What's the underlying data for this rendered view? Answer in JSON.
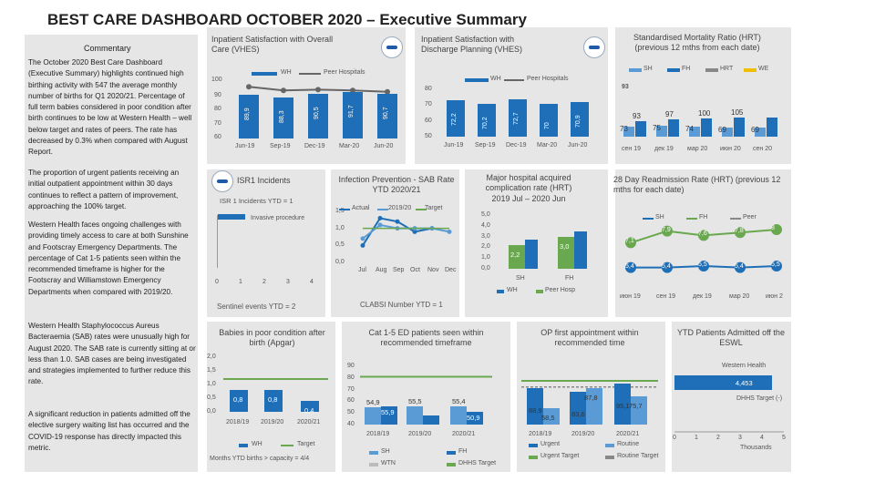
{
  "page": {
    "title": "BEST CARE DASHBOARD OCTOBER 2020 – Executive Summary"
  },
  "commentary": {
    "heading": "Commentary",
    "p1": "The October 2020 Best Care Dashboard (Executive Summary) highlights continued high birthing activity with 547 the average monthly number of births for Q1 2020/21. Percentage of full term babies considered in poor condition after birth continues to be low at Western Health – well below target and rates of peers. The rate has decreased by 0.3% when compared with August Report.",
    "p2": "The proportion of urgent patients receiving an initial outpatient appointment within 30 days continues to reflect a pattern of improvement, approaching the 100% target.",
    "p3": "Western Health faces ongoing challenges with providing timely access to care at both Sunshine and Footscray Emergency Departments. The percentage of Cat 1-5 patients seen within the recommended timeframe is higher for the Footscray and Williamstown Emergency Departments when compared with 2019/20.",
    "p4": "Western Health Staphylococcus Aureus Bacteraemia (SAB) rates were unusually high for August 2020. The SAB rate is currently sitting at or less than 1.0. SAB cases are being investigated and strategies implemented to further reduce this rate.",
    "p5": "A significant reduction in patients admitted off the elective surgery waiting list has occurred and the COVID-19 response has directly impacted this metric."
  },
  "vhes_overall": {
    "title": "Inpatient Satisfaction with Overall Care (VHES)",
    "legend_wh": "WH",
    "legend_peer": "Peer Hospitals",
    "yticks": [
      "100",
      "90",
      "80",
      "70",
      "60"
    ],
    "chart_data": {
      "type": "bar",
      "categories": [
        "Jun-19",
        "Sep-19",
        "Dec-19",
        "Mar-20",
        "Jun-20"
      ],
      "series": [
        {
          "name": "WH",
          "values": [
            89.9,
            88.3,
            90.5,
            91.7,
            90.7
          ],
          "labels": [
            "89,9",
            "88,3",
            "90,5",
            "91,7",
            "90,7"
          ]
        },
        {
          "name": "Peer Hospitals",
          "values": [
            95.5,
            93.0,
            93.5,
            93.0,
            92.0
          ]
        }
      ],
      "ylim": [
        60,
        100
      ]
    }
  },
  "vhes_discharge": {
    "title": "Inpatient Satisfaction with Discharge Planning (VHES)",
    "legend_wh": "WH",
    "legend_peer": "Peer Hospitals",
    "yticks": [
      "80",
      "70",
      "60",
      "50"
    ],
    "chart_data": {
      "type": "bar",
      "categories": [
        "Jun-19",
        "Sep-19",
        "Dec-19",
        "Mar-20",
        "Jun-20"
      ],
      "series": [
        {
          "name": "WH",
          "values": [
            72.2,
            70.2,
            72.7,
            70,
            70.9
          ],
          "labels": [
            "72,2",
            "70,2",
            "72,7",
            "70",
            "70,9"
          ]
        }
      ],
      "ylim": [
        50,
        80
      ]
    }
  },
  "hrt": {
    "title": "Standardised Mortality Ratio (HRT) (previous 12 mths from each date)",
    "legend": [
      "SH",
      "FH",
      "HRT",
      "WE"
    ],
    "x": [
      "сен 19",
      "дек 19",
      "мар 20",
      "июн 20",
      "сен 20"
    ],
    "top_label": "93",
    "chart_data": {
      "type": "bar",
      "categories": [
        "сен 19",
        "дек 19",
        "мар 20",
        "июн 20",
        "сен 20"
      ],
      "series": [
        {
          "name": "SH",
          "values": [
            73,
            75,
            74,
            69,
            69
          ],
          "labels": [
            "73",
            "75",
            "74",
            "69",
            "69"
          ]
        },
        {
          "name": "FH",
          "values": [
            93,
            97,
            100,
            105,
            105
          ],
          "labels": [
            "93",
            "97",
            "100",
            "105",
            ""
          ]
        }
      ]
    }
  },
  "isr": {
    "title": "ISR1 Incidents",
    "ytd": "ISR 1 Incidents YTD = 1",
    "invasive": "Invasive procedure",
    "xticks": [
      "0",
      "1",
      "2",
      "3",
      "4"
    ],
    "sentinel": "Sentinel events YTD = 2"
  },
  "infection": {
    "title": "Infection Prevention - SAB Rate YTD 2020/21",
    "legend": [
      "Actual",
      "2019/20",
      "Target"
    ],
    "yticks": [
      "1,5",
      "1,0",
      "0,5",
      "0,0"
    ],
    "clabsi": "CLABSI Number YTD = 1",
    "chart_data": {
      "type": "line",
      "categories": [
        "Jul",
        "Aug",
        "Sep",
        "Oct",
        "Nov",
        "Dec"
      ],
      "series": [
        {
          "name": "Actual",
          "values": [
            0.5,
            1.3,
            1.2,
            0.9,
            1.0,
            null
          ]
        },
        {
          "name": "2019/20",
          "values": [
            0.7,
            1.1,
            1.0,
            1.0,
            1.0,
            0.9
          ]
        },
        {
          "name": "Target",
          "values": [
            1.0,
            1.0,
            1.0,
            1.0,
            1.0,
            1.0
          ]
        }
      ],
      "ylim": [
        0,
        1.5
      ]
    }
  },
  "major": {
    "title": "Major hospital acquired complication rate (HRT) 2019 Jul – 2020 Jun",
    "yticks": [
      "5,0",
      "4,0",
      "3,0",
      "2,0",
      "1,0",
      "0,0"
    ],
    "legend": [
      "WH",
      "Peer Hosp"
    ],
    "chart_data": {
      "type": "bar",
      "categories": [
        "SH",
        "FH"
      ],
      "series": [
        {
          "name": "WH",
          "values": [
            2.2,
            3.0
          ],
          "labels": [
            "2,2",
            "3,0"
          ]
        }
      ],
      "ylim": [
        0,
        5
      ]
    }
  },
  "readmission": {
    "title": "28 Day Readmission Rate (HRT) (previous 12 mths for each date)",
    "legend": [
      "SH",
      "FH",
      "Peer"
    ],
    "x": [
      "июн 19",
      "сен 19",
      "дек 19",
      "мар 20",
      "июн 2"
    ],
    "chart_data": {
      "type": "line",
      "categories": [
        "июн 19",
        "сен 19",
        "дек 19",
        "мар 20",
        "июн 2"
      ],
      "series": [
        {
          "name": "SH",
          "values": [
            5.4,
            5.4,
            5.5,
            5.4,
            5.5
          ],
          "labels": [
            "5,4",
            "5,4",
            "5,5",
            "5,4",
            "5,5"
          ]
        },
        {
          "name": "FH",
          "values": [
            7.1,
            7.9,
            7.6,
            7.8,
            8
          ],
          "labels": [
            "7,1",
            "7,9",
            "7,6",
            "7,8",
            "8"
          ]
        }
      ]
    }
  },
  "apgar": {
    "title": "Babies in poor condition after birth (Apgar)",
    "yticks": [
      "2,0",
      "1,5",
      "1,0",
      "0,5",
      "0,0"
    ],
    "legend": [
      "WH",
      "Target"
    ],
    "footer": "Months YTD births > capacity = 4/4",
    "chart_data": {
      "type": "bar",
      "categories": [
        "2018/19",
        "2019/20",
        "2020/21"
      ],
      "series": [
        {
          "name": "WH",
          "values": [
            0.8,
            0.8,
            0.4
          ],
          "labels": [
            "0,8",
            "0,8",
            "0,4"
          ]
        }
      ],
      "ylim": [
        0,
        2
      ]
    }
  },
  "ed": {
    "title": "Cat 1-5 ED patients seen within recommended timeframe",
    "yticks": [
      "90",
      "80",
      "70",
      "60",
      "50",
      "40"
    ],
    "legend": [
      "SH",
      "FH",
      "WTN",
      "DHHS Target"
    ],
    "chart_data": {
      "type": "bar",
      "categories": [
        "2018/19",
        "2019/20",
        "2020/21"
      ],
      "series": [
        {
          "name": "SH",
          "values": [
            54.9,
            55.5,
            55.4
          ],
          "labels": [
            "54,9",
            "55,5",
            "55,4"
          ]
        },
        {
          "name": "FH",
          "values": [
            55.9,
            48,
            50.9
          ],
          "labels": [
            "55,9",
            "",
            "50,9"
          ]
        }
      ],
      "ylim": [
        40,
        90
      ]
    }
  },
  "op": {
    "title": "OP first appointment within recommended time",
    "legend": [
      "Urgent",
      "Routine",
      "Urgent Target",
      "Routine Target"
    ],
    "chart_data": {
      "type": "bar",
      "categories": [
        "2018/19",
        "2019/20",
        "2020/21"
      ],
      "series": [
        {
          "name": "Urgent",
          "values": [
            88.9,
            83.6,
            95.1
          ],
          "labels": [
            "88,9",
            "83,6",
            "95,1"
          ]
        },
        {
          "name": "Routine",
          "values": [
            58.5,
            87.8,
            75.7
          ],
          "labels": [
            "58,5",
            "87,8",
            "75,7"
          ]
        }
      ]
    }
  },
  "eswl": {
    "title": "YTD Patients Admitted off the ESWL",
    "legend_wh": "Western Health",
    "value_label": "4,453",
    "target": "DHHS Target (-)",
    "xticks": [
      "0",
      "1",
      "2",
      "3",
      "4",
      "5"
    ],
    "xlabel": "Thousands",
    "chart_data": {
      "type": "bar",
      "categories": [
        "Western Health"
      ],
      "values": [
        4.453
      ]
    }
  }
}
